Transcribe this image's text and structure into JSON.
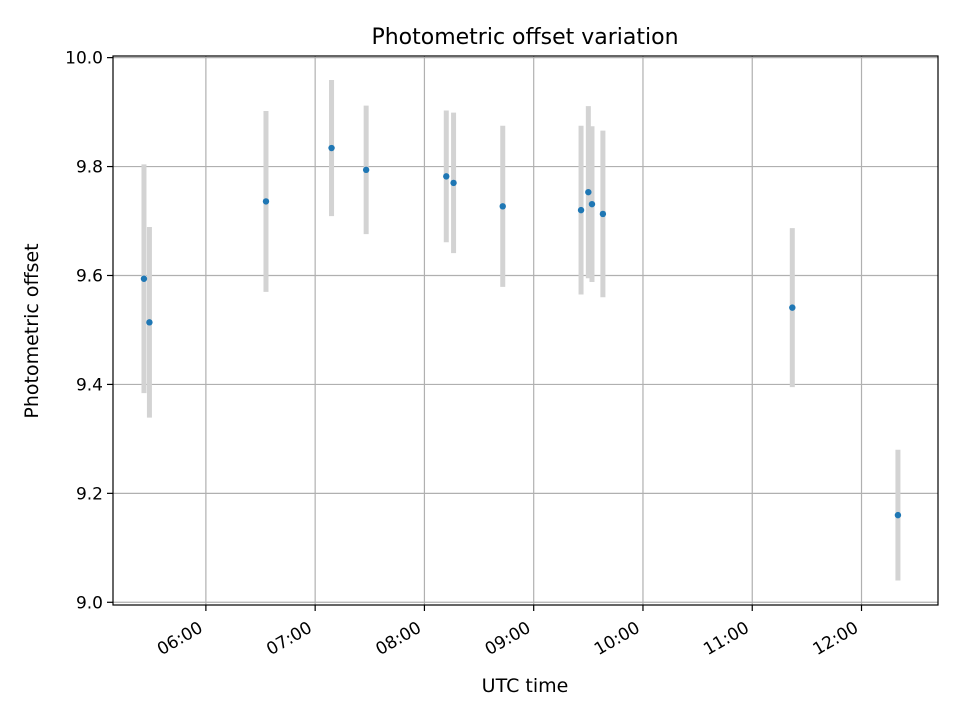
{
  "chart_data": {
    "type": "scatter",
    "title": "Photometric offset variation",
    "xlabel": "UTC time",
    "ylabel": "Photometric offset",
    "x_axis_type": "time",
    "xlim": [
      "05:09",
      "12:42"
    ],
    "ylim": [
      8.995,
      10.003
    ],
    "x_ticks": [
      "06:00",
      "07:00",
      "08:00",
      "09:00",
      "10:00",
      "11:00",
      "12:00"
    ],
    "y_ticks": [
      "9.0",
      "9.2",
      "9.4",
      "9.6",
      "9.8",
      "10.0"
    ],
    "grid": true,
    "marker_color": "#1f77b4",
    "errorbar_color": "#d3d3d3",
    "points": [
      {
        "time": "05:26",
        "value": 9.594,
        "err": 0.21
      },
      {
        "time": "05:29",
        "value": 9.514,
        "err": 0.175
      },
      {
        "time": "06:33",
        "value": 9.736,
        "err": 0.166
      },
      {
        "time": "07:09",
        "value": 9.834,
        "err": 0.125
      },
      {
        "time": "07:28",
        "value": 9.794,
        "err": 0.118
      },
      {
        "time": "08:12",
        "value": 9.782,
        "err": 0.121
      },
      {
        "time": "08:16",
        "value": 9.77,
        "err": 0.129
      },
      {
        "time": "08:43",
        "value": 9.727,
        "err": 0.148
      },
      {
        "time": "09:26",
        "value": 9.72,
        "err": 0.155
      },
      {
        "time": "09:30",
        "value": 9.753,
        "err": 0.158
      },
      {
        "time": "09:32",
        "value": 9.731,
        "err": 0.143
      },
      {
        "time": "09:38",
        "value": 9.713,
        "err": 0.153
      },
      {
        "time": "11:22",
        "value": 9.541,
        "err": 0.146
      },
      {
        "time": "12:20",
        "value": 9.16,
        "err": 0.12
      }
    ]
  }
}
